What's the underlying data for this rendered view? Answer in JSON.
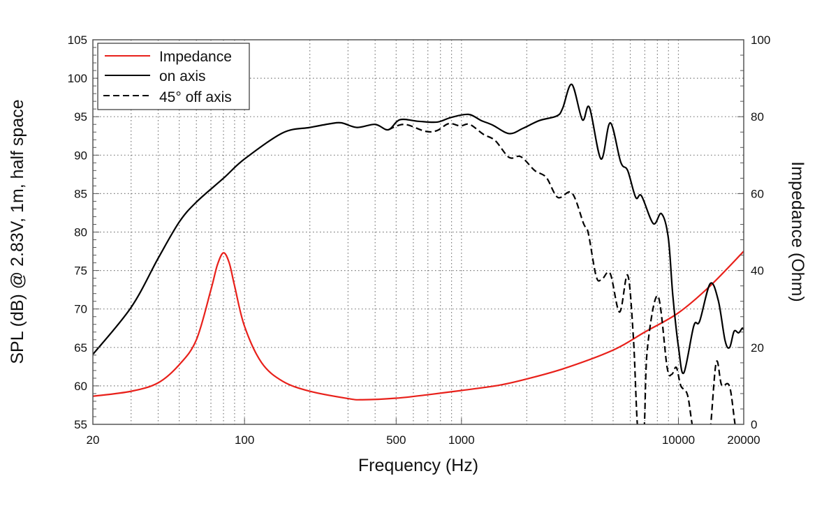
{
  "chart_data": {
    "type": "line",
    "xlabel": "Frequency (Hz)",
    "ylabel": "SPL (dB) @ 2.83V, 1m, half space",
    "y2label": "Impedance (Ohm)",
    "xscale": "log",
    "xlim": [
      20,
      20000
    ],
    "ylim": [
      55,
      105
    ],
    "y2lim": [
      0,
      100
    ],
    "grid": true,
    "legend_position": "top-left",
    "x_ticks": [
      20,
      100,
      500,
      1000,
      10000,
      20000
    ],
    "x_tick_labels": [
      "20",
      "100",
      "500",
      "1000",
      "10000",
      "20000"
    ],
    "y_ticks": [
      55,
      60,
      65,
      70,
      75,
      80,
      85,
      90,
      95,
      100,
      105
    ],
    "y_tick_labels": [
      "55",
      "60",
      "65",
      "70",
      "75",
      "80",
      "85",
      "90",
      "95",
      "100",
      "105"
    ],
    "y2_ticks": [
      0,
      20,
      40,
      60,
      80,
      100
    ],
    "y2_tick_labels": [
      "0",
      "20",
      "40",
      "60",
      "80",
      "100"
    ],
    "series": [
      {
        "name": "Impedance",
        "axis": "right",
        "color": "#e8201a",
        "style": "solid",
        "x": [
          20,
          30,
          40,
          50,
          60,
          70,
          75,
          80,
          85,
          90,
          100,
          120,
          150,
          200,
          300,
          350,
          500,
          700,
          1000,
          1500,
          2000,
          3000,
          5000,
          7000,
          10000,
          14000,
          20000
        ],
        "y": [
          7.3,
          8.6,
          10.8,
          15.5,
          22,
          35,
          41.5,
          44.6,
          42,
          36,
          25.5,
          16,
          11.2,
          8.6,
          6.7,
          6.4,
          6.8,
          7.7,
          8.8,
          10.2,
          11.8,
          14.6,
          19.3,
          24,
          29,
          36,
          45
        ]
      },
      {
        "name": "on axis",
        "axis": "left",
        "color": "#000000",
        "style": "solid",
        "x": [
          20,
          30,
          40,
          50,
          60,
          80,
          100,
          150,
          200,
          250,
          280,
          330,
          400,
          460,
          520,
          634,
          772,
          895,
          1077,
          1233,
          1395,
          1659,
          1924,
          2287,
          2752,
          2927,
          3227,
          3608,
          3889,
          4397,
          4849,
          5421,
          5835,
          6358,
          6760,
          7661,
          8347,
          8978,
          9427,
          10032,
          10596,
          11771,
          12522,
          14015,
          15270,
          16405,
          17221,
          18057,
          18948,
          19692,
          20000
        ],
        "y": [
          64.1,
          70.2,
          76.6,
          81.3,
          83.9,
          87.0,
          89.5,
          92.9,
          93.6,
          94.1,
          94.2,
          93.6,
          94.0,
          93.3,
          94.6,
          94.4,
          94.3,
          94.9,
          95.3,
          94.5,
          93.9,
          92.8,
          93.5,
          94.5,
          95.1,
          96.1,
          99.2,
          94.6,
          96.2,
          89.5,
          94.2,
          89.1,
          88.0,
          84.5,
          84.7,
          81.1,
          82.4,
          79.3,
          71.7,
          64.8,
          61.7,
          67.8,
          68.4,
          73.3,
          71.1,
          65.9,
          65.0,
          67.1,
          66.9,
          67.5,
          67.3
        ]
      },
      {
        "name": "45° off axis",
        "axis": "left",
        "color": "#000000",
        "style": "dashed",
        "x": [
          460,
          545,
          682,
          772,
          873,
          988,
          1090,
          1264,
          1430,
          1659,
          1877,
          2177,
          2460,
          2781,
          3227,
          3655,
          3839,
          4182,
          4450,
          4849,
          5355,
          5835,
          6200,
          6510,
          6930,
          7190,
          8040,
          8871,
          9315,
          9780,
          10266,
          11018,
          11771,
          12835,
          13845,
          14920,
          15823,
          17221,
          18500,
          20000
        ],
        "y": [
          93.3,
          94.0,
          93.1,
          93.2,
          94.1,
          93.8,
          94.0,
          92.7,
          91.9,
          89.7,
          89.8,
          88.0,
          87.1,
          84.5,
          85.1,
          81.1,
          79.9,
          74.2,
          73.9,
          74.6,
          69.6,
          74.4,
          66.3,
          54,
          54,
          64.8,
          71.7,
          62.4,
          61.5,
          62.4,
          60.0,
          58.8,
          54,
          53,
          53,
          63.0,
          60.1,
          59.9,
          54,
          52
        ]
      }
    ]
  }
}
